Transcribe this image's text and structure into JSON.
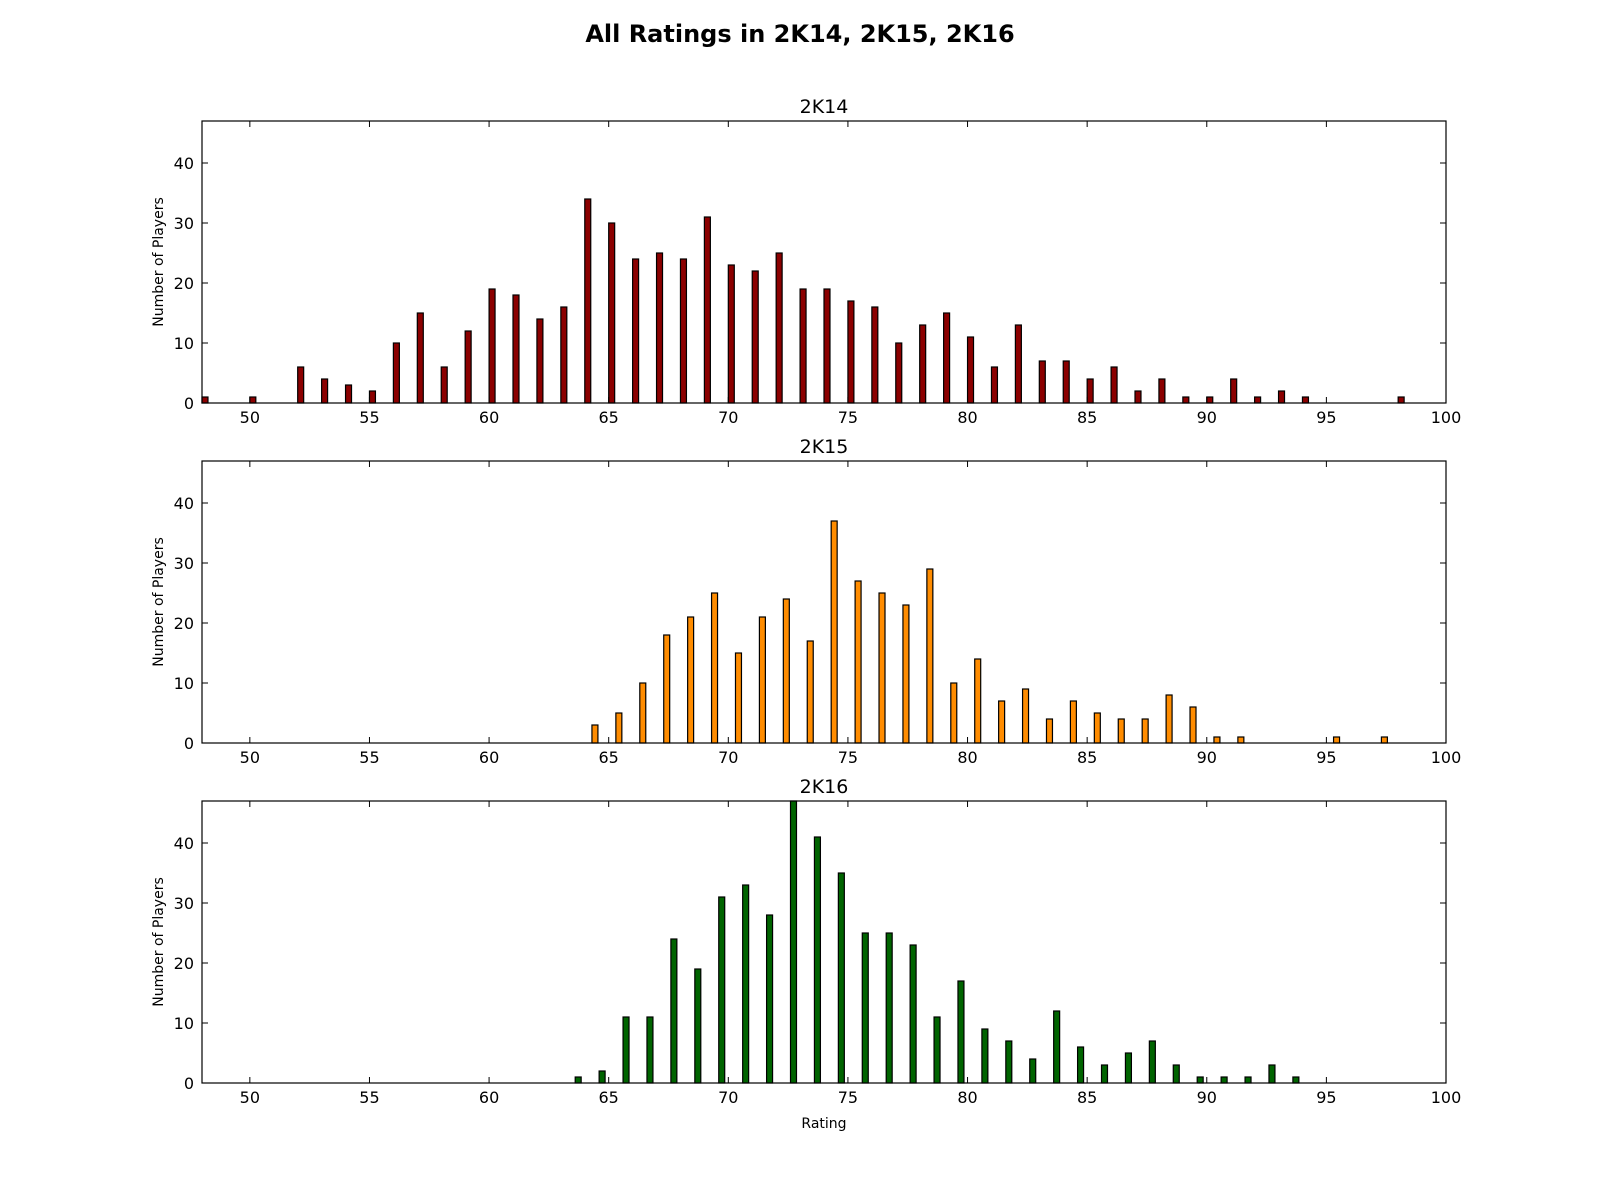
{
  "figure": {
    "title": "All Ratings in 2K14, 2K15, 2K16"
  },
  "chart_data": [
    {
      "type": "bar",
      "title": "2K14",
      "xlabel": "",
      "ylabel": "Number of Players",
      "xlim": [
        48,
        100
      ],
      "ylim": [
        0,
        47
      ],
      "xticks": [
        50,
        55,
        60,
        65,
        70,
        75,
        80,
        85,
        90,
        95,
        100
      ],
      "yticks": [
        0,
        10,
        20,
        30,
        40
      ],
      "bar_width": 0.25,
      "color": "#8b0000",
      "x": [
        48,
        50,
        52,
        53,
        54,
        55,
        56,
        57,
        58,
        59,
        60,
        61,
        62,
        63,
        64,
        65,
        66,
        67,
        68,
        69,
        70,
        71,
        72,
        73,
        74,
        75,
        76,
        77,
        78,
        79,
        80,
        81,
        82,
        83,
        84,
        85,
        86,
        87,
        88,
        89,
        90,
        91,
        92,
        93,
        94,
        98
      ],
      "values": [
        1,
        1,
        6,
        4,
        3,
        2,
        10,
        15,
        6,
        12,
        19,
        18,
        14,
        16,
        34,
        30,
        24,
        25,
        24,
        31,
        23,
        22,
        25,
        19,
        19,
        17,
        16,
        10,
        13,
        15,
        11,
        6,
        13,
        7,
        7,
        4,
        6,
        2,
        4,
        1,
        1,
        4,
        1,
        2,
        1,
        1
      ]
    },
    {
      "type": "bar",
      "title": "2K15",
      "xlabel": "",
      "ylabel": "Number of Players",
      "xlim": [
        48,
        100
      ],
      "ylim": [
        0,
        47
      ],
      "xticks": [
        50,
        55,
        60,
        65,
        70,
        75,
        80,
        85,
        90,
        95,
        100
      ],
      "yticks": [
        0,
        10,
        20,
        30,
        40
      ],
      "bar_width": 0.25,
      "color": "#ff8c00",
      "x": [
        64.3,
        65.3,
        66.3,
        67.3,
        68.3,
        69.3,
        70.3,
        71.3,
        72.3,
        73.3,
        74.3,
        75.3,
        76.3,
        77.3,
        78.3,
        79.3,
        80.3,
        81.3,
        82.3,
        83.3,
        84.3,
        85.3,
        86.3,
        87.3,
        88.3,
        89.3,
        90.3,
        91.3,
        95.3,
        97.3
      ],
      "values": [
        3,
        5,
        10,
        18,
        21,
        25,
        15,
        21,
        24,
        17,
        37,
        27,
        25,
        23,
        29,
        10,
        14,
        7,
        9,
        4,
        7,
        5,
        4,
        4,
        8,
        6,
        1,
        1,
        1,
        1
      ]
    },
    {
      "type": "bar",
      "title": "2K16",
      "xlabel": "Rating",
      "ylabel": "Number of Players",
      "xlim": [
        48,
        100
      ],
      "ylim": [
        0,
        47
      ],
      "xticks": [
        50,
        55,
        60,
        65,
        70,
        75,
        80,
        85,
        90,
        95,
        100
      ],
      "yticks": [
        0,
        10,
        20,
        30,
        40
      ],
      "bar_width": 0.25,
      "color": "#006400",
      "x": [
        63.6,
        64.6,
        65.6,
        66.6,
        67.6,
        68.6,
        69.6,
        70.6,
        71.6,
        72.6,
        73.6,
        74.6,
        75.6,
        76.6,
        77.6,
        78.6,
        79.6,
        80.6,
        81.6,
        82.6,
        83.6,
        84.6,
        85.6,
        86.6,
        87.6,
        88.6,
        89.6,
        90.6,
        91.6,
        92.6,
        93.6
      ],
      "values": [
        1,
        2,
        11,
        11,
        24,
        19,
        31,
        33,
        28,
        47,
        41,
        35,
        25,
        25,
        23,
        11,
        17,
        9,
        7,
        4,
        12,
        6,
        3,
        5,
        7,
        3,
        1,
        1,
        1,
        3,
        1
      ]
    }
  ]
}
